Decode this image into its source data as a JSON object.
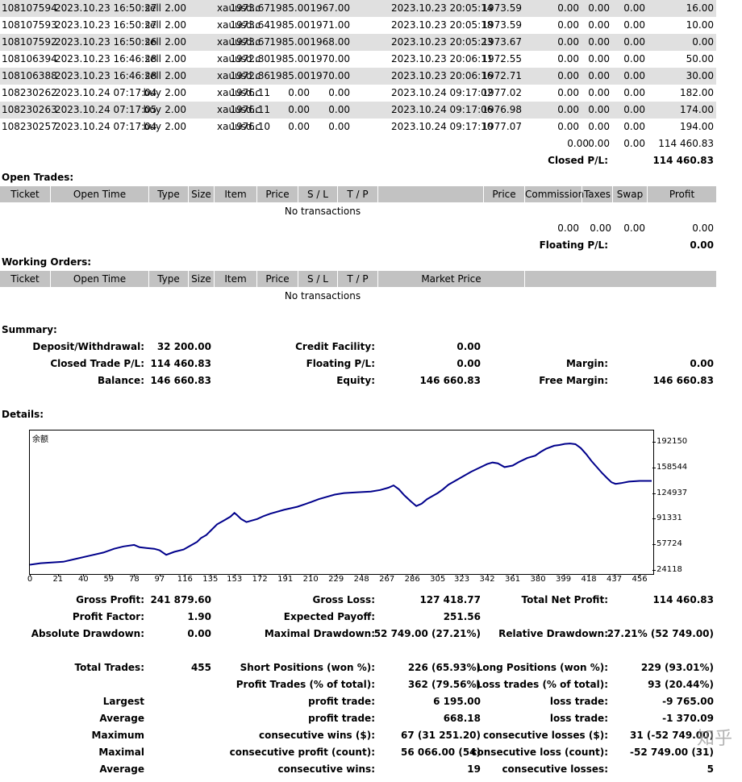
{
  "deals": [
    {
      "ticket": "108107594",
      "open_time": "2023.10.23 16:50:27",
      "type": "sell",
      "size": "2.00",
      "item": "xauusd.c",
      "price": "1973.67",
      "sl": "1985.00",
      "tp": "1967.00",
      "close_time": "2023.10.23 20:05:14",
      "close_price": "1973.59",
      "commission": "0.00",
      "taxes": "0.00",
      "swap": "0.00",
      "profit": "16.00"
    },
    {
      "ticket": "108107593",
      "open_time": "2023.10.23 16:50:27",
      "type": "sell",
      "size": "2.00",
      "item": "xauusd.c",
      "price": "1973.64",
      "sl": "1985.00",
      "tp": "1971.00",
      "close_time": "2023.10.23 20:05:18",
      "close_price": "1973.59",
      "commission": "0.00",
      "taxes": "0.00",
      "swap": "0.00",
      "profit": "10.00"
    },
    {
      "ticket": "108107592",
      "open_time": "2023.10.23 16:50:26",
      "type": "sell",
      "size": "2.00",
      "item": "xauusd.c",
      "price": "1973.67",
      "sl": "1985.00",
      "tp": "1968.00",
      "close_time": "2023.10.23 20:05:23",
      "close_price": "1973.67",
      "commission": "0.00",
      "taxes": "0.00",
      "swap": "0.00",
      "profit": "0.00"
    },
    {
      "ticket": "108106394",
      "open_time": "2023.10.23 16:46:28",
      "type": "sell",
      "size": "2.00",
      "item": "xauusd.c",
      "price": "1972.80",
      "sl": "1985.00",
      "tp": "1970.00",
      "close_time": "2023.10.23 20:06:11",
      "close_price": "1972.55",
      "commission": "0.00",
      "taxes": "0.00",
      "swap": "0.00",
      "profit": "50.00"
    },
    {
      "ticket": "108106388",
      "open_time": "2023.10.23 16:46:28",
      "type": "sell",
      "size": "2.00",
      "item": "xauusd.c",
      "price": "1972.86",
      "sl": "1985.00",
      "tp": "1970.00",
      "close_time": "2023.10.23 20:06:16",
      "close_price": "1972.71",
      "commission": "0.00",
      "taxes": "0.00",
      "swap": "0.00",
      "profit": "30.00"
    },
    {
      "ticket": "108230262",
      "open_time": "2023.10.24 07:17:04",
      "type": "buy",
      "size": "2.00",
      "item": "xauusd.c",
      "price": "1976.11",
      "sl": "0.00",
      "tp": "0.00",
      "close_time": "2023.10.24 09:17:02",
      "close_price": "1977.02",
      "commission": "0.00",
      "taxes": "0.00",
      "swap": "0.00",
      "profit": "182.00"
    },
    {
      "ticket": "108230263",
      "open_time": "2023.10.24 07:17:05",
      "type": "buy",
      "size": "2.00",
      "item": "xauusd.c",
      "price": "1976.11",
      "sl": "0.00",
      "tp": "0.00",
      "close_time": "2023.10.24 09:17:06",
      "close_price": "1976.98",
      "commission": "0.00",
      "taxes": "0.00",
      "swap": "0.00",
      "profit": "174.00"
    },
    {
      "ticket": "108230257",
      "open_time": "2023.10.24 07:17:04",
      "type": "buy",
      "size": "2.00",
      "item": "xauusd.c",
      "price": "1976.10",
      "sl": "0.00",
      "tp": "0.00",
      "close_time": "2023.10.24 09:17:10",
      "close_price": "1977.07",
      "commission": "0.00",
      "taxes": "0.00",
      "swap": "0.00",
      "profit": "194.00"
    }
  ],
  "closed_totals": {
    "commission": "0.00",
    "taxes": "0.00",
    "swap": "0.00",
    "profit": "114 460.83",
    "label": "Closed P/L:",
    "value": "114 460.83"
  },
  "open_trades": {
    "title": "Open Trades:",
    "headers": {
      "ticket": "Ticket",
      "open_time": "Open Time",
      "type": "Type",
      "size": "Size",
      "item": "Item",
      "price": "Price",
      "sl": "S / L",
      "tp": "T / P",
      "price2": "Price",
      "commission": "Commission",
      "taxes": "Taxes",
      "swap": "Swap",
      "profit": "Profit"
    },
    "empty": "No transactions",
    "totals": {
      "commission": "0.00",
      "taxes": "0.00",
      "swap": "0.00",
      "profit": "0.00"
    },
    "floating_label": "Floating P/L:",
    "floating_value": "0.00"
  },
  "working_orders": {
    "title": "Working Orders:",
    "headers": {
      "ticket": "Ticket",
      "open_time": "Open Time",
      "type": "Type",
      "size": "Size",
      "item": "Item",
      "price": "Price",
      "sl": "S / L",
      "tp": "T / P",
      "market_price": "Market Price"
    },
    "empty": "No transactions"
  },
  "summary": {
    "title": "Summary:",
    "deposit_label": "Deposit/Withdrawal:",
    "deposit_value": "32 200.00",
    "credit_label": "Credit Facility:",
    "credit_value": "0.00",
    "closed_label": "Closed Trade P/L:",
    "closed_value": "114 460.83",
    "floating_label": "Floating P/L:",
    "floating_value": "0.00",
    "margin_label": "Margin:",
    "margin_value": "0.00",
    "balance_label": "Balance:",
    "balance_value": "146 660.83",
    "equity_label": "Equity:",
    "equity_value": "146 660.83",
    "free_margin_label": "Free Margin:",
    "free_margin_value": "146 660.83"
  },
  "details": {
    "title": "Details:",
    "chart_label": "余额"
  },
  "chart_data": {
    "type": "line",
    "title": "余额",
    "x_ticks": [
      "0",
      "21",
      "40",
      "59",
      "78",
      "97",
      "116",
      "135",
      "153",
      "172",
      "191",
      "210",
      "229",
      "248",
      "267",
      "286",
      "305",
      "323",
      "342",
      "361",
      "380",
      "399",
      "418",
      "437",
      "456"
    ],
    "y_ticks": [
      "192150",
      "158544",
      "124937",
      "91331",
      "57724",
      "24118"
    ],
    "xlim": [
      0,
      465
    ],
    "ylim": [
      24118,
      192150
    ],
    "grid": false,
    "color": "#00008b",
    "series": [
      {
        "x": [
          0,
          8,
          16,
          25,
          35,
          45,
          55,
          63,
          70,
          78,
          82,
          87,
          93,
          97,
          102,
          108,
          115,
          120,
          125,
          128,
          132,
          136,
          140,
          145,
          150,
          153,
          155,
          158,
          162,
          166,
          170,
          175,
          180,
          190,
          200,
          205,
          210,
          216,
          222,
          228,
          235,
          245,
          255,
          262,
          268,
          272,
          276,
          280,
          285,
          289,
          293,
          297,
          301,
          305,
          309,
          313,
          318,
          323,
          330,
          336,
          342,
          346,
          350,
          355,
          361,
          366,
          372,
          378,
          382,
          386,
          392,
          396,
          400,
          404,
          408,
          412,
          416,
          420,
          424,
          428,
          432,
          435,
          438,
          442,
          448,
          456,
          465
        ],
        "y": [
          32000,
          34000,
          35000,
          36000,
          40000,
          44000,
          48000,
          53000,
          56000,
          58000,
          55000,
          54000,
          53000,
          51000,
          45000,
          49000,
          52000,
          57000,
          62000,
          67000,
          71000,
          78000,
          85000,
          90000,
          95000,
          100000,
          97000,
          92000,
          88000,
          90000,
          92000,
          96000,
          99000,
          104000,
          108000,
          111000,
          114000,
          118000,
          121000,
          124000,
          126000,
          127000,
          128000,
          130000,
          133000,
          136000,
          131000,
          123000,
          115000,
          109000,
          112000,
          118000,
          122000,
          126000,
          131000,
          137000,
          142000,
          147000,
          154000,
          159000,
          164000,
          166000,
          165000,
          160000,
          162000,
          167000,
          172000,
          175000,
          180000,
          184000,
          188000,
          189000,
          190500,
          191000,
          190000,
          185000,
          177000,
          168000,
          160000,
          152000,
          145000,
          140000,
          138000,
          139000,
          141000,
          142000,
          142000
        ]
      }
    ]
  },
  "stats": {
    "gross_profit_label": "Gross Profit:",
    "gross_profit_value": "241 879.60",
    "gross_loss_label": "Gross Loss:",
    "gross_loss_value": "127 418.77",
    "total_net_label": "Total Net Profit:",
    "total_net_value": "114 460.83",
    "profit_factor_label": "Profit Factor:",
    "profit_factor_value": "1.90",
    "expected_payoff_label": "Expected Payoff:",
    "expected_payoff_value": "251.56",
    "abs_dd_label": "Absolute Drawdown:",
    "abs_dd_value": "0.00",
    "max_dd_label": "Maximal Drawdown:",
    "max_dd_value": "52 749.00 (27.21%)",
    "rel_dd_label": "Relative Drawdown:",
    "rel_dd_value": "27.21% (52 749.00)",
    "total_trades_label": "Total Trades:",
    "total_trades_value": "455",
    "short_label": "Short Positions (won %):",
    "short_value": "226 (65.93%)",
    "long_label": "Long Positions (won %):",
    "long_value": "229 (93.01%)",
    "profit_trades_label": "Profit Trades (% of total):",
    "profit_trades_value": "362 (79.56%)",
    "loss_trades_label": "Loss trades (% of total):",
    "loss_trades_value": "93 (20.44%)",
    "largest_label": "Largest",
    "largest_profit_label": "profit trade:",
    "largest_profit_value": "6 195.00",
    "largest_loss_label": "loss trade:",
    "largest_loss_value": "-9 765.00",
    "average_label": "Average",
    "average_profit_label": "profit trade:",
    "average_profit_value": "668.18",
    "average_loss_label": "loss trade:",
    "average_loss_value": "-1 370.09",
    "maximum_label": "Maximum",
    "cons_wins_money_label": "consecutive wins ($):",
    "cons_wins_money_value": "67 (31 251.20)",
    "cons_losses_money_label": "consecutive losses ($):",
    "cons_losses_money_value": "31 (-52 749.00)",
    "maximal_label": "Maximal",
    "cons_profit_count_label": "consecutive profit (count):",
    "cons_profit_count_value": "56 066.00 (54)",
    "cons_loss_count_label": "consecutive loss (count):",
    "cons_loss_count_value": "-52 749.00 (31)",
    "average2_label": "Average",
    "avg_cons_wins_label": "consecutive wins:",
    "avg_cons_wins_value": "19",
    "avg_cons_losses_label": "consecutive losses:",
    "avg_cons_losses_value": "5"
  },
  "watermark": "知乎"
}
